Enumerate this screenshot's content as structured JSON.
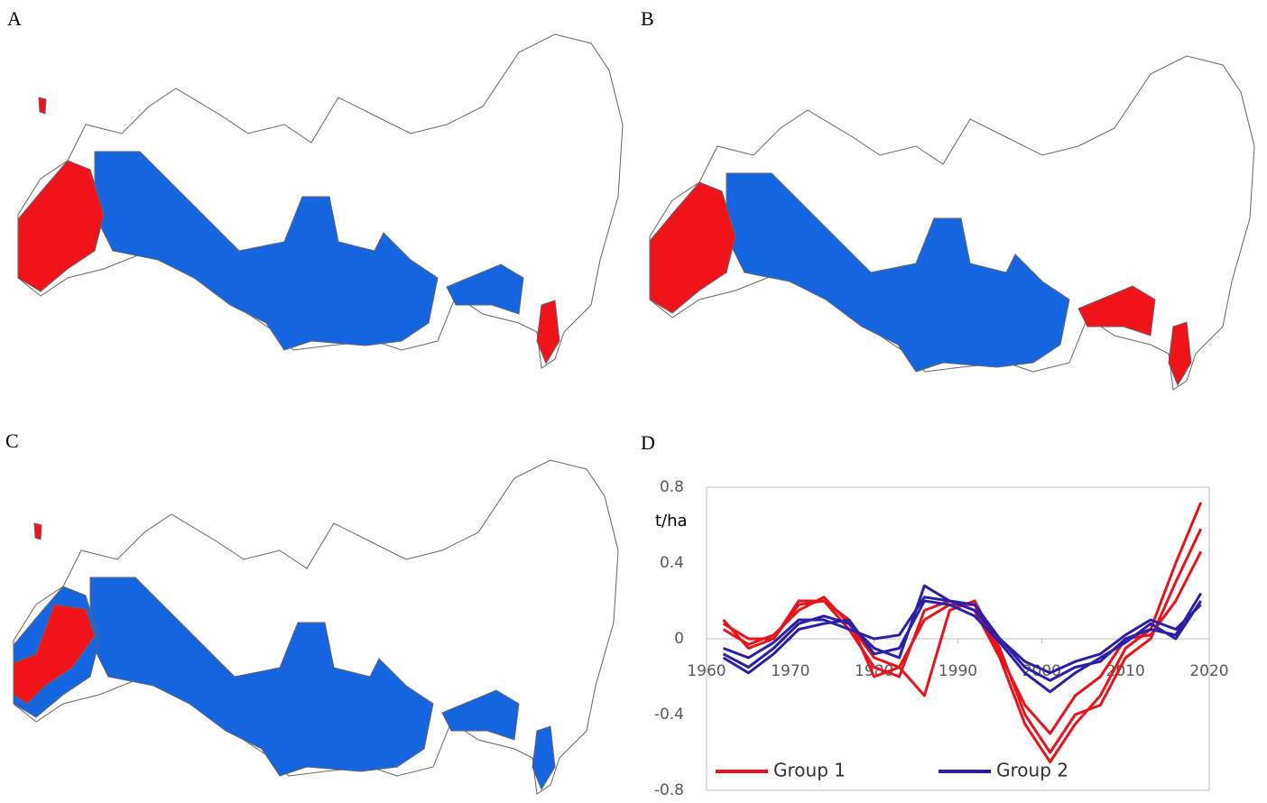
{
  "panels": {
    "labels": [
      "A",
      "B",
      "C",
      "D"
    ]
  },
  "chart_data": {
    "type": "line",
    "y_label": "t/ha",
    "x": [
      1962,
      1965,
      1968,
      1971,
      1974,
      1977,
      1980,
      1983,
      1986,
      1989,
      1992,
      1995,
      1998,
      2001,
      2004,
      2007,
      2010,
      2013,
      2016,
      2019
    ],
    "xlim": [
      1960,
      2020
    ],
    "xticks": [
      1960,
      1970,
      1980,
      1990,
      2000,
      2010,
      2020
    ],
    "ylim": [
      -0.8,
      0.8
    ],
    "yticks": [
      -0.8,
      -0.4,
      0,
      0.4,
      0.8
    ],
    "series": [
      {
        "name": "Group 1",
        "color": "#e8141b",
        "values": [
          0.1,
          -0.05,
          0.0,
          0.2,
          0.2,
          0.05,
          -0.15,
          -0.2,
          0.15,
          0.2,
          0.15,
          -0.1,
          -0.45,
          -0.65,
          -0.45,
          -0.3,
          -0.05,
          0.05,
          0.4,
          0.72
        ]
      },
      {
        "name": "Group 1",
        "color": "#e8141b",
        "values": [
          0.05,
          -0.03,
          0.02,
          0.15,
          0.22,
          0.08,
          -0.1,
          -0.15,
          -0.3,
          0.15,
          0.2,
          -0.05,
          -0.4,
          -0.6,
          -0.4,
          -0.35,
          -0.1,
          0.0,
          0.3,
          0.58
        ]
      },
      {
        "name": "Group 1",
        "color": "#e8141b",
        "values": [
          0.08,
          0.0,
          0.0,
          0.18,
          0.2,
          0.1,
          -0.2,
          -0.15,
          0.1,
          0.18,
          0.18,
          -0.08,
          -0.35,
          -0.5,
          -0.3,
          -0.2,
          0.0,
          0.02,
          0.2,
          0.46
        ]
      },
      {
        "name": "Group 2",
        "color": "#2a1fa8",
        "values": [
          -0.08,
          -0.15,
          -0.05,
          0.08,
          0.12,
          0.08,
          -0.05,
          -0.1,
          0.28,
          0.2,
          0.15,
          0.0,
          -0.15,
          -0.22,
          -0.15,
          -0.12,
          0.0,
          0.05,
          0.02,
          0.24
        ]
      },
      {
        "name": "Group 2",
        "color": "#2a1fa8",
        "values": [
          -0.1,
          -0.18,
          -0.08,
          0.05,
          0.08,
          0.1,
          -0.08,
          -0.05,
          0.2,
          0.18,
          0.12,
          -0.02,
          -0.18,
          -0.28,
          -0.18,
          -0.1,
          -0.02,
          0.08,
          0.0,
          0.2
        ]
      },
      {
        "name": "Group 2",
        "color": "#2a1fa8",
        "values": [
          -0.05,
          -0.1,
          -0.02,
          0.1,
          0.1,
          0.05,
          0.0,
          0.02,
          0.22,
          0.2,
          0.18,
          0.0,
          -0.12,
          -0.18,
          -0.12,
          -0.08,
          0.02,
          0.1,
          0.05,
          0.18
        ]
      }
    ]
  }
}
